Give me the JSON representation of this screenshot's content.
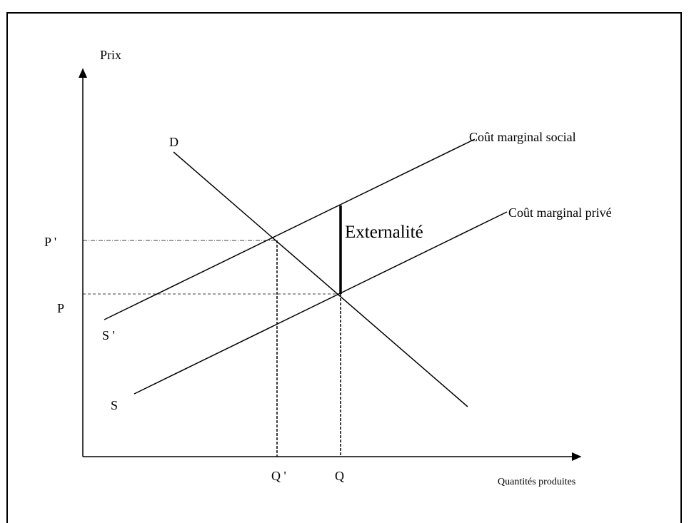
{
  "labels": {
    "y_axis": "Prix",
    "x_axis": "Quantités produites",
    "demand": "D",
    "social_cost": "Coût marginal social",
    "private_cost": "Coût marginal privé",
    "externality": "Externalité",
    "price_social": "P '",
    "price_private": "P",
    "supply_social": "S '",
    "supply_private": "S",
    "quantity_social": "Q '",
    "quantity_private": "Q"
  }
}
